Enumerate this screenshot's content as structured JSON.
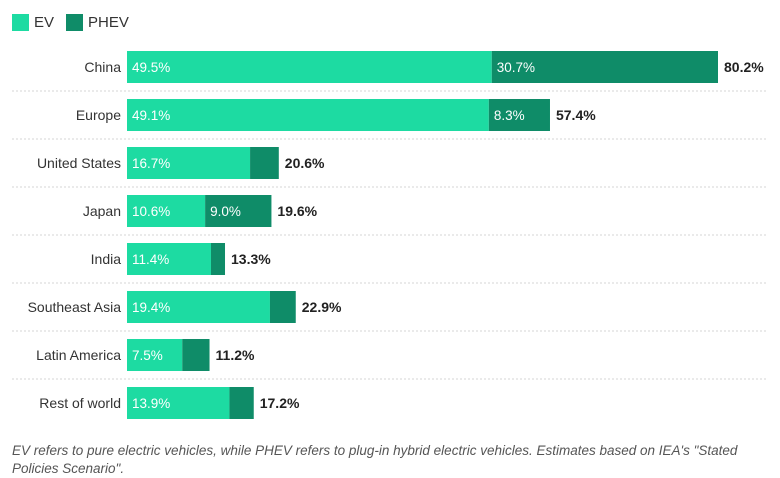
{
  "chart_data": {
    "type": "bar",
    "orientation": "horizontal",
    "stacked": true,
    "categories": [
      "China",
      "Europe",
      "United States",
      "Japan",
      "India",
      "Southeast Asia",
      "Latin America",
      "Rest of world"
    ],
    "series": [
      {
        "name": "EV",
        "values": [
          49.5,
          49.1,
          16.7,
          10.6,
          11.4,
          19.4,
          7.5,
          13.9
        ],
        "labels": [
          "49.5%",
          "49.1%",
          "16.7%",
          "10.6%",
          "11.4%",
          "19.4%",
          "7.5%",
          "13.9%"
        ],
        "color": "#1ddba2"
      },
      {
        "name": "PHEV",
        "values": [
          30.7,
          8.3,
          3.9,
          9.0,
          1.9,
          3.5,
          3.7,
          3.3
        ],
        "labels": [
          "30.7%",
          "8.3%",
          "",
          "9.0%",
          "",
          "",
          "",
          ""
        ],
        "color": "#0f8c68"
      }
    ],
    "totals": [
      "80.2%",
      "57.4%",
      "20.6%",
      "19.6%",
      "13.3%",
      "22.9%",
      "11.2%",
      "17.2%"
    ],
    "xlim": [
      0,
      80.2
    ],
    "grid": true,
    "legend_position": "top-left"
  },
  "legend": {
    "ev_label": "EV",
    "phev_label": "PHEV"
  },
  "footnote": "EV refers to pure electric vehicles, while PHEV refers to plug-in hybrid electric vehicles. Estimates based on IEA's \"Stated Policies Scenario\"."
}
